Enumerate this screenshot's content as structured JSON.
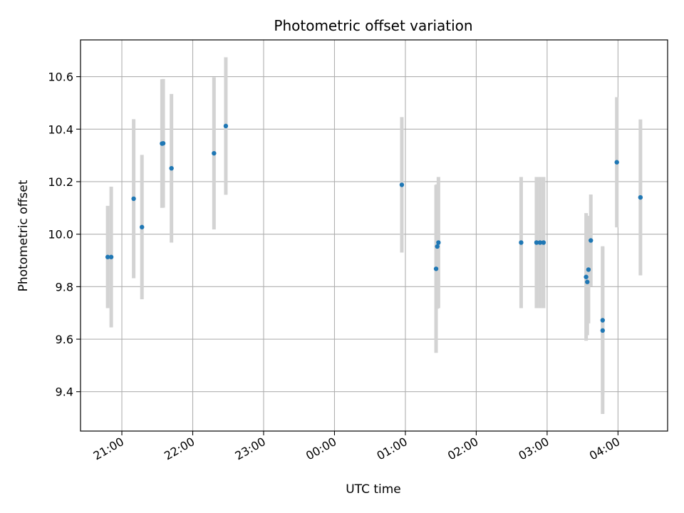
{
  "chart_data": {
    "type": "scatter",
    "title": "Photometric offset variation",
    "xlabel": "UTC time",
    "ylabel": "Photometric offset",
    "x_unit": "UTC hh:mm (times after midnight fall on the following day)",
    "xlim": [
      "20:25",
      "04:42"
    ],
    "ylim": [
      9.25,
      10.74
    ],
    "x_ticks": [
      "21:00",
      "22:00",
      "23:00",
      "00:00",
      "01:00",
      "02:00",
      "03:00",
      "04:00"
    ],
    "y_ticks": [
      9.4,
      9.6,
      9.8,
      10.0,
      10.2,
      10.4,
      10.6
    ],
    "grid": true,
    "marker_color": "#1f77b4",
    "errorbar_color": "#d3d3d3",
    "points": [
      {
        "x": "20:48",
        "y": 9.913,
        "err": 0.195
      },
      {
        "x": "20:51",
        "y": 9.913,
        "err": 0.268
      },
      {
        "x": "21:10",
        "y": 10.135,
        "err": 0.303
      },
      {
        "x": "21:17",
        "y": 10.027,
        "err": 0.275
      },
      {
        "x": "21:34",
        "y": 10.345,
        "err": 0.245
      },
      {
        "x": "21:35",
        "y": 10.346,
        "err": 0.245
      },
      {
        "x": "21:42",
        "y": 10.251,
        "err": 0.283
      },
      {
        "x": "22:18",
        "y": 10.308,
        "err": 0.29
      },
      {
        "x": "22:28",
        "y": 10.412,
        "err": 0.262
      },
      {
        "x": "00:57",
        "y": 10.188,
        "err": 0.258
      },
      {
        "x": "01:26",
        "y": 9.868,
        "err": 0.32
      },
      {
        "x": "01:27",
        "y": 9.953,
        "err": 0.237
      },
      {
        "x": "01:28",
        "y": 9.968,
        "err": 0.25
      },
      {
        "x": "02:38",
        "y": 9.968,
        "err": 0.25
      },
      {
        "x": "02:51",
        "y": 9.968,
        "err": 0.25
      },
      {
        "x": "02:54",
        "y": 9.968,
        "err": 0.25
      },
      {
        "x": "02:57",
        "y": 9.968,
        "err": 0.25
      },
      {
        "x": "03:33",
        "y": 9.837,
        "err": 0.243
      },
      {
        "x": "03:34",
        "y": 9.818,
        "err": 0.203
      },
      {
        "x": "03:35",
        "y": 9.865,
        "err": 0.205
      },
      {
        "x": "03:37",
        "y": 9.976,
        "err": 0.175
      },
      {
        "x": "03:47",
        "y": 9.672,
        "err": 0.282
      },
      {
        "x": "03:47",
        "y": 9.633,
        "err": 0.318
      },
      {
        "x": "03:59",
        "y": 10.274,
        "err": 0.248
      },
      {
        "x": "04:19",
        "y": 10.14,
        "err": 0.297
      }
    ]
  }
}
